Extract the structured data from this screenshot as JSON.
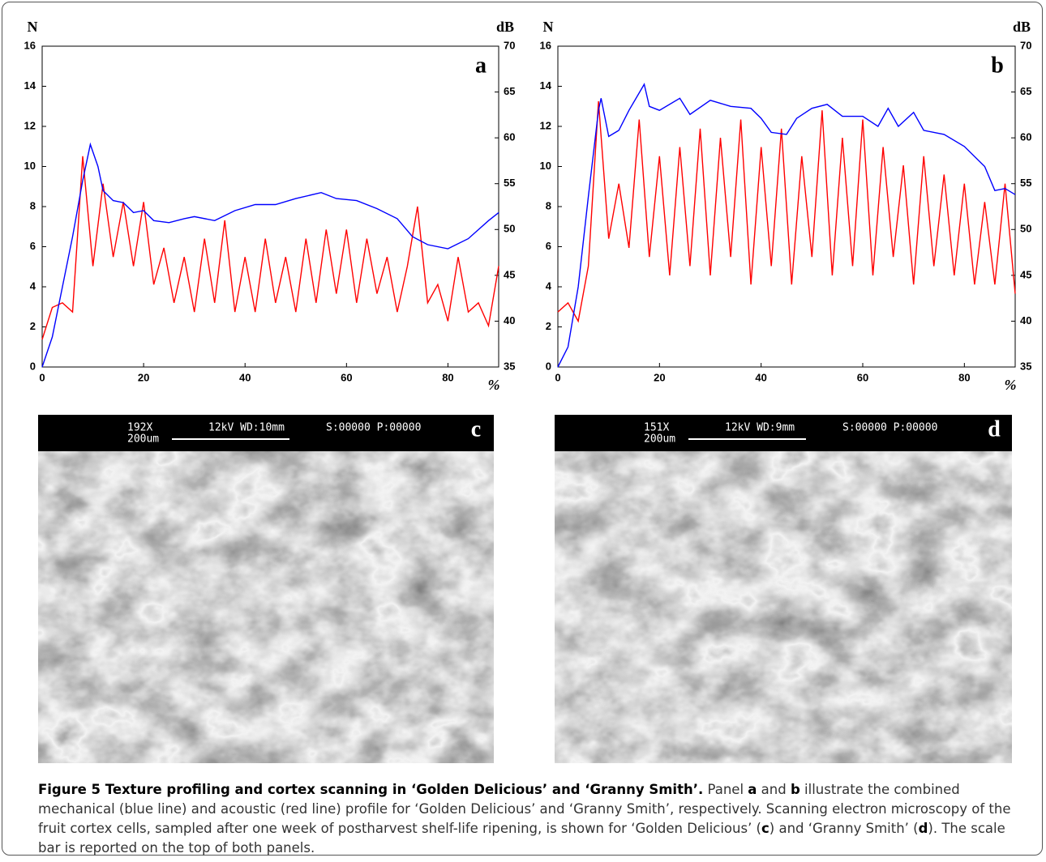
{
  "chart_data": [
    {
      "type": "line",
      "panel": "a",
      "ylabel": "N",
      "y2label": "dB",
      "xlabel": "%",
      "xlim": [
        0,
        90
      ],
      "xticks": [
        0,
        20,
        40,
        60,
        80
      ],
      "ylim": [
        0,
        16
      ],
      "yticks": [
        0,
        2,
        4,
        6,
        8,
        10,
        12,
        14,
        16
      ],
      "y2lim": [
        35,
        70
      ],
      "y2ticks": [
        35,
        40,
        45,
        50,
        55,
        60,
        65,
        70
      ],
      "series": [
        {
          "color": "#0000ff",
          "x": [
            0,
            2,
            4,
            6,
            8,
            9.5,
            11,
            12,
            14,
            16,
            18,
            20,
            22,
            25,
            28,
            30,
            34,
            38,
            42,
            46,
            50,
            55,
            58,
            62,
            66,
            70,
            73,
            76,
            80,
            84,
            88,
            90
          ],
          "values": [
            0,
            1.5,
            4,
            6.5,
            9.3,
            11.1,
            10,
            8.8,
            8.3,
            8.2,
            7.7,
            7.8,
            7.3,
            7.2,
            7.4,
            7.5,
            7.3,
            7.8,
            8.1,
            8.1,
            8.4,
            8.7,
            8.4,
            8.3,
            7.9,
            7.4,
            6.5,
            6.1,
            5.9,
            6.4,
            7.3,
            7.7
          ]
        },
        {
          "color": "#ff0000",
          "axis": "y2",
          "x": [
            0,
            2,
            4,
            6,
            8,
            10,
            12,
            14,
            16,
            18,
            20,
            22,
            24,
            26,
            28,
            30,
            32,
            34,
            36,
            38,
            40,
            42,
            44,
            46,
            48,
            50,
            52,
            54,
            56,
            58,
            60,
            62,
            64,
            66,
            68,
            70,
            72,
            74,
            76,
            78,
            80,
            82,
            84,
            86,
            88,
            90
          ],
          "values": [
            38,
            41.5,
            42,
            41,
            58,
            46,
            55,
            47,
            53,
            46,
            53,
            44,
            48,
            42,
            47,
            41,
            49,
            42,
            51,
            41,
            47,
            41,
            49,
            42,
            47,
            41,
            49,
            42,
            50,
            43,
            50,
            42,
            49,
            43,
            47,
            41,
            46,
            52.5,
            42,
            44,
            40,
            47,
            41,
            42,
            39.5,
            46
          ]
        }
      ]
    },
    {
      "type": "line",
      "panel": "b",
      "ylabel": "N",
      "y2label": "dB",
      "xlabel": "%",
      "xlim": [
        0,
        90
      ],
      "xticks": [
        0,
        20,
        40,
        60,
        80
      ],
      "ylim": [
        0,
        16
      ],
      "yticks": [
        0,
        2,
        4,
        6,
        8,
        10,
        12,
        14,
        16
      ],
      "y2lim": [
        35,
        70
      ],
      "y2ticks": [
        35,
        40,
        45,
        50,
        55,
        60,
        65,
        70
      ],
      "series": [
        {
          "color": "#0000ff",
          "x": [
            0,
            2,
            4,
            6,
            8,
            8.5,
            10,
            12,
            14,
            17,
            18,
            20,
            24,
            26,
            30,
            34,
            38,
            40,
            42,
            45,
            47,
            50,
            53,
            56,
            60,
            63,
            65,
            67,
            70,
            72,
            76,
            80,
            84,
            86,
            88,
            90
          ],
          "values": [
            0,
            1,
            4,
            8.5,
            12.8,
            13.4,
            11.5,
            11.8,
            12.8,
            14.1,
            13,
            12.8,
            13.4,
            12.6,
            13.3,
            13,
            12.9,
            12.4,
            11.7,
            11.6,
            12.4,
            12.9,
            13.1,
            12.5,
            12.5,
            12,
            12.9,
            12,
            12.7,
            11.8,
            11.6,
            11,
            10,
            8.8,
            8.9,
            8.6
          ]
        },
        {
          "color": "#ff0000",
          "axis": "y2",
          "x": [
            0,
            2,
            4,
            6,
            8,
            10,
            12,
            14,
            16,
            18,
            20,
            22,
            24,
            26,
            28,
            30,
            32,
            34,
            36,
            38,
            40,
            42,
            44,
            46,
            48,
            50,
            52,
            54,
            56,
            58,
            60,
            62,
            64,
            66,
            68,
            70,
            72,
            74,
            76,
            78,
            80,
            82,
            84,
            86,
            88,
            90
          ],
          "values": [
            41,
            42,
            40,
            46,
            64,
            49,
            55,
            48,
            62,
            47,
            58,
            45,
            59,
            46,
            61,
            45,
            60,
            47,
            62,
            44,
            59,
            46,
            61,
            44,
            58,
            47,
            63,
            45,
            60,
            46,
            62,
            45,
            59,
            47,
            57,
            44,
            58,
            46,
            56,
            45,
            55,
            44,
            53,
            44,
            55,
            43
          ]
        }
      ]
    }
  ],
  "micrographs": [
    {
      "label": "c",
      "magnification": "192X",
      "settings": "12kV WD:10mm",
      "counter": "S:00000 P:00000",
      "scale": "200um"
    },
    {
      "label": "d",
      "magnification": "151X",
      "settings": "12kV WD:9mm",
      "counter": "S:00000 P:00000",
      "scale": "200um"
    }
  ],
  "caption": {
    "segments": [
      {
        "text": "Figure 5 Texture profiling and cortex scanning in ‘Golden Delicious’ and ‘Granny Smith’.",
        "bold": true
      },
      {
        "text": " Panel ",
        "bold": false
      },
      {
        "text": "a",
        "bold": true
      },
      {
        "text": " and ",
        "bold": false
      },
      {
        "text": "b",
        "bold": true
      },
      {
        "text": " illustrate the combined mechanical (blue line) and acoustic (red line) profile for ‘Golden Delicious’ and ‘Granny Smith’, respectively. Scanning electron microscopy of the fruit cortex cells, sampled after one week of postharvest shelf-life ripening, is shown for ‘Golden Delicious’ (",
        "bold": false
      },
      {
        "text": "c",
        "bold": true
      },
      {
        "text": ") and ‘Granny Smith’ (",
        "bold": false
      },
      {
        "text": "d",
        "bold": true
      },
      {
        "text": "). The scale bar is reported on the top of both panels.",
        "bold": false
      }
    ]
  }
}
